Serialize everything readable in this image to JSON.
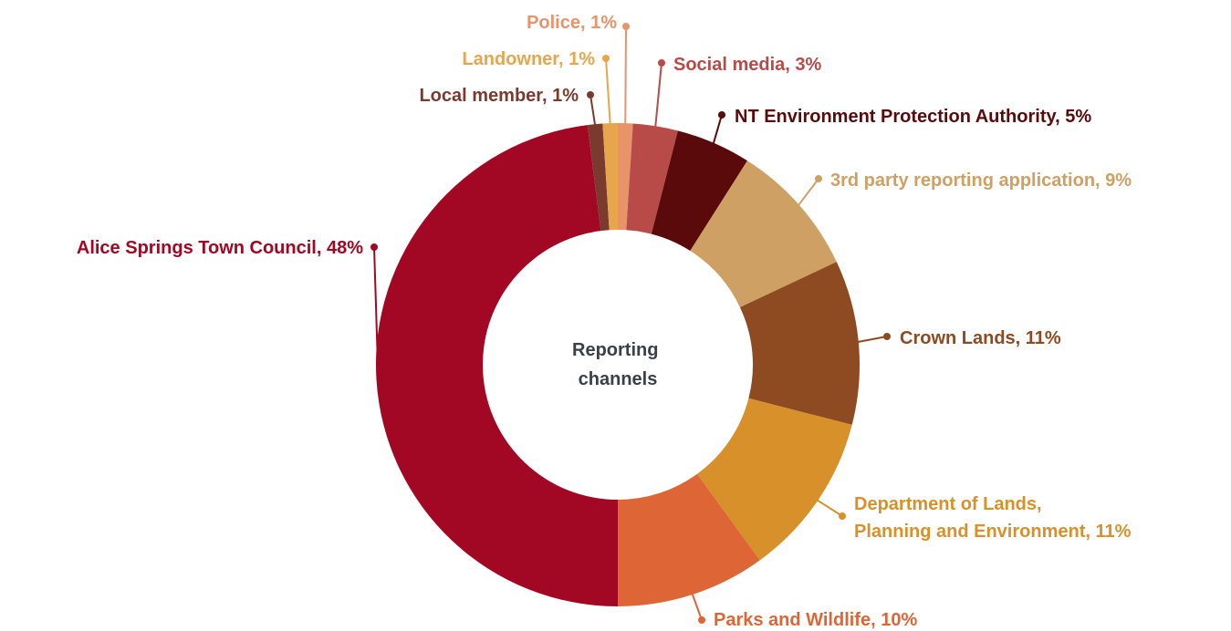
{
  "chart_data": {
    "type": "pie",
    "center_label": [
      "Reporting",
      "channels"
    ],
    "slices": [
      {
        "label": "Police",
        "value": 1,
        "value_text": "Police, 1%",
        "color": "#E8936A"
      },
      {
        "label": "Social media",
        "value": 3,
        "value_text": "Social media, 3%",
        "color": "#B84B48"
      },
      {
        "label": "NT Environment Protection Authority",
        "value": 5,
        "value_text": "NT Environment Protection Authority, 5%",
        "color": "#5A0A0A"
      },
      {
        "label": "3rd party reporting application",
        "value": 9,
        "value_text": "3rd party reporting application, 9%",
        "color": "#CFA064"
      },
      {
        "label": "Crown Lands",
        "value": 11,
        "value_text": "Crown Lands, 11%",
        "color": "#8E4A20"
      },
      {
        "label": "Department of Lands, Planning and Environment",
        "value": 11,
        "value_text": [
          "Department of Lands,",
          "Planning and Environment, 11%"
        ],
        "color": "#D8912A"
      },
      {
        "label": "Parks and Wildlife",
        "value": 10,
        "value_text": "Parks and Wildlife, 10%",
        "color": "#DE6636"
      },
      {
        "label": "Alice Springs Town Council",
        "value": 48,
        "value_text": "Alice Springs Town Council, 48%",
        "color": "#A20823"
      },
      {
        "label": "Local member",
        "value": 1,
        "value_text": "Local member, 1%",
        "color": "#7A3B2E"
      },
      {
        "label": "Landowner",
        "value": 1,
        "value_text": "Landowner, 1%",
        "color": "#E8A64C"
      }
    ]
  }
}
